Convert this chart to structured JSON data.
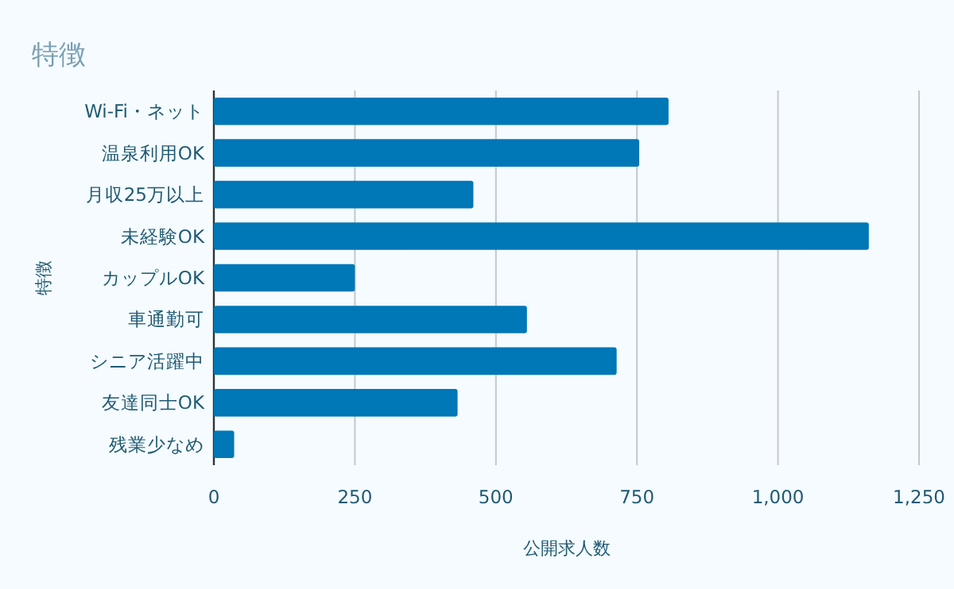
{
  "chart_data": {
    "type": "bar",
    "orientation": "horizontal",
    "title": "特徴",
    "xlabel": "公開求人数",
    "ylabel": "特徴",
    "categories": [
      "Wi-Fi・ネット",
      "温泉利用OK",
      "月収25万以上",
      "未経験OK",
      "カップルOK",
      "車通勤可",
      "シニア活躍中",
      "友達同士OK",
      "残業少なめ"
    ],
    "values": [
      806,
      754,
      460,
      1161,
      250,
      555,
      714,
      432,
      36
    ],
    "color": "#0077b6",
    "xlim": [
      0,
      1250
    ],
    "xticks": [
      0,
      {
        "value": 250,
        "label": "250"
      },
      {
        "value": 500,
        "label": "500"
      },
      {
        "value": 750,
        "label": "750"
      },
      {
        "value": 1000,
        "label": "1,000"
      },
      {
        "value": 1250,
        "label": "1,250"
      }
    ],
    "grid": "x"
  }
}
